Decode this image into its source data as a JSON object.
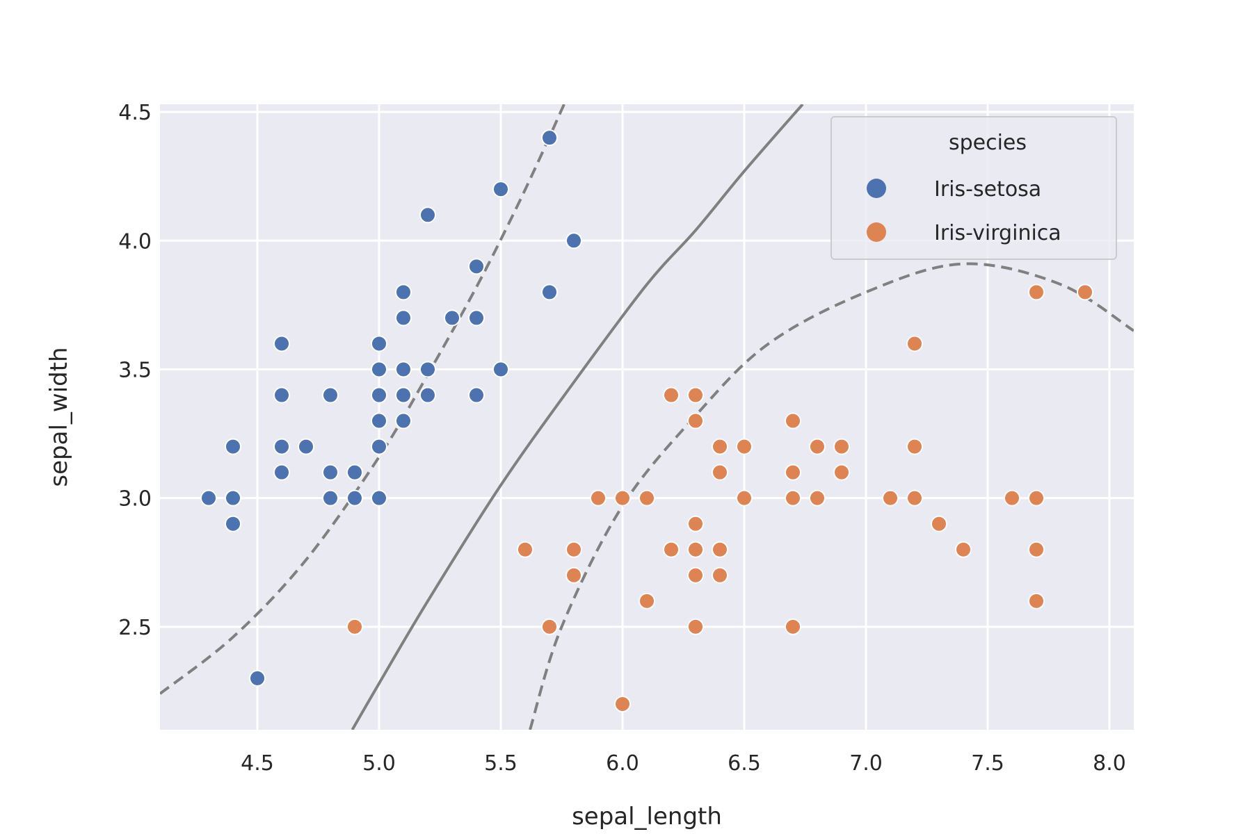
{
  "chart_data": {
    "type": "scatter",
    "title": "",
    "xlabel": "sepal_length",
    "ylabel": "sepal_width",
    "xlim": [
      4.1,
      8.1
    ],
    "ylim": [
      2.1,
      4.53
    ],
    "xticks": [
      "4.5",
      "5.0",
      "5.5",
      "6.0",
      "6.5",
      "7.0",
      "7.5",
      "8.0"
    ],
    "yticks": [
      "2.5",
      "3.0",
      "3.5",
      "4.0",
      "4.5"
    ],
    "grid": true,
    "legend": {
      "title": "species",
      "placement": "top-right",
      "entries": [
        "Iris-setosa",
        "Iris-virginica"
      ]
    },
    "series": [
      {
        "name": "Iris-setosa",
        "color": "#4c72b0",
        "points": [
          [
            4.3,
            3.0
          ],
          [
            4.4,
            3.2
          ],
          [
            4.4,
            3.0
          ],
          [
            4.4,
            2.9
          ],
          [
            4.5,
            2.3
          ],
          [
            4.6,
            3.6
          ],
          [
            4.6,
            3.4
          ],
          [
            4.6,
            3.2
          ],
          [
            4.6,
            3.1
          ],
          [
            4.7,
            3.2
          ],
          [
            4.8,
            3.4
          ],
          [
            4.8,
            3.1
          ],
          [
            4.8,
            3.0
          ],
          [
            4.9,
            3.1
          ],
          [
            4.9,
            3.0
          ],
          [
            5.0,
            3.6
          ],
          [
            5.0,
            3.5
          ],
          [
            5.0,
            3.4
          ],
          [
            5.0,
            3.3
          ],
          [
            5.0,
            3.2
          ],
          [
            5.0,
            3.0
          ],
          [
            5.1,
            3.8
          ],
          [
            5.1,
            3.7
          ],
          [
            5.1,
            3.5
          ],
          [
            5.1,
            3.4
          ],
          [
            5.1,
            3.3
          ],
          [
            5.2,
            4.1
          ],
          [
            5.2,
            3.5
          ],
          [
            5.2,
            3.4
          ],
          [
            5.3,
            3.7
          ],
          [
            5.4,
            3.9
          ],
          [
            5.4,
            3.7
          ],
          [
            5.4,
            3.4
          ],
          [
            5.5,
            4.2
          ],
          [
            5.5,
            3.5
          ],
          [
            5.7,
            4.4
          ],
          [
            5.7,
            3.8
          ],
          [
            5.8,
            4.0
          ]
        ]
      },
      {
        "name": "Iris-virginica",
        "color": "#dd8452",
        "points": [
          [
            4.9,
            2.5
          ],
          [
            5.6,
            2.8
          ],
          [
            5.7,
            2.5
          ],
          [
            5.8,
            2.8
          ],
          [
            5.8,
            2.7
          ],
          [
            5.9,
            3.0
          ],
          [
            6.0,
            3.0
          ],
          [
            6.0,
            2.2
          ],
          [
            6.1,
            3.0
          ],
          [
            6.1,
            2.6
          ],
          [
            6.2,
            3.4
          ],
          [
            6.2,
            2.8
          ],
          [
            6.3,
            3.4
          ],
          [
            6.3,
            3.3
          ],
          [
            6.3,
            2.9
          ],
          [
            6.3,
            2.8
          ],
          [
            6.3,
            2.7
          ],
          [
            6.3,
            2.5
          ],
          [
            6.4,
            3.2
          ],
          [
            6.4,
            3.1
          ],
          [
            6.4,
            2.8
          ],
          [
            6.4,
            2.7
          ],
          [
            6.5,
            3.2
          ],
          [
            6.5,
            3.0
          ],
          [
            6.7,
            3.3
          ],
          [
            6.7,
            3.1
          ],
          [
            6.7,
            3.0
          ],
          [
            6.7,
            2.5
          ],
          [
            6.8,
            3.2
          ],
          [
            6.8,
            3.0
          ],
          [
            6.9,
            3.2
          ],
          [
            6.9,
            3.1
          ],
          [
            7.1,
            3.0
          ],
          [
            7.2,
            3.6
          ],
          [
            7.2,
            3.2
          ],
          [
            7.2,
            3.0
          ],
          [
            7.3,
            2.9
          ],
          [
            7.4,
            2.8
          ],
          [
            7.6,
            3.0
          ],
          [
            7.7,
            3.8
          ],
          [
            7.7,
            3.0
          ],
          [
            7.7,
            2.8
          ],
          [
            7.7,
            2.6
          ],
          [
            7.9,
            3.8
          ]
        ]
      }
    ],
    "decision_curves": [
      {
        "name": "decision-boundary",
        "style": "solid",
        "color": "#808080",
        "points": [
          [
            4.89,
            2.1
          ],
          [
            5.0,
            2.28
          ],
          [
            5.2,
            2.6
          ],
          [
            5.5,
            3.05
          ],
          [
            5.8,
            3.45
          ],
          [
            6.1,
            3.83
          ],
          [
            6.3,
            4.04
          ],
          [
            6.5,
            4.27
          ],
          [
            6.74,
            4.53
          ]
        ]
      },
      {
        "name": "margin-upper",
        "style": "dashed",
        "color": "#808080",
        "points": [
          [
            4.1,
            2.24
          ],
          [
            4.4,
            2.46
          ],
          [
            4.7,
            2.76
          ],
          [
            5.0,
            3.16
          ],
          [
            5.2,
            3.48
          ],
          [
            5.4,
            3.82
          ],
          [
            5.55,
            4.1
          ],
          [
            5.66,
            4.32
          ],
          [
            5.76,
            4.53
          ]
        ]
      },
      {
        "name": "margin-lower",
        "style": "dashed",
        "color": "#808080",
        "points": [
          [
            5.62,
            2.1
          ],
          [
            5.75,
            2.5
          ],
          [
            6.0,
            2.97
          ],
          [
            6.3,
            3.32
          ],
          [
            6.6,
            3.6
          ],
          [
            7.0,
            3.8
          ],
          [
            7.4,
            3.91
          ],
          [
            7.8,
            3.83
          ],
          [
            8.1,
            3.65
          ]
        ]
      }
    ]
  }
}
